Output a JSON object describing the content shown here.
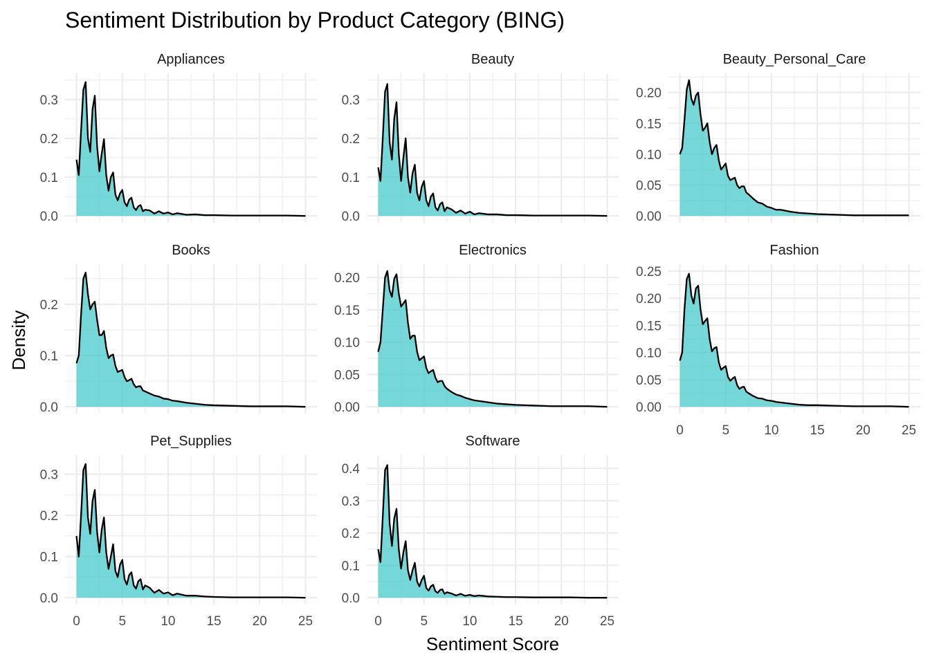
{
  "chart_data": {
    "type": "area",
    "title": "Sentiment Distribution by Product Category (BING)",
    "xlabel": "Sentiment Score",
    "ylabel": "Density",
    "xlim": [
      0,
      25
    ],
    "x_ticks": [
      0,
      5,
      10,
      15,
      20,
      25
    ],
    "fill_color": "#48C9CB",
    "line_color": "#000000",
    "grid": true,
    "facets": [
      {
        "name": "Appliances",
        "ylim": [
          0,
          0.35
        ],
        "y_ticks": [
          "0.0",
          "0.1",
          "0.2",
          "0.3"
        ],
        "y_tick_values": [
          0,
          0.1,
          0.2,
          0.3
        ],
        "x": [
          0,
          0.25,
          0.5,
          0.75,
          1,
          1.25,
          1.5,
          1.75,
          2,
          2.25,
          2.5,
          2.75,
          3,
          3.25,
          3.5,
          3.75,
          4,
          4.25,
          4.5,
          4.75,
          5,
          5.25,
          5.5,
          5.75,
          6,
          6.25,
          6.5,
          6.75,
          7,
          7.25,
          7.5,
          8,
          8.5,
          9,
          9.5,
          10,
          10.5,
          11,
          12,
          13,
          14,
          15,
          17,
          19,
          21,
          23,
          25
        ],
        "y": [
          0.145,
          0.105,
          0.22,
          0.325,
          0.345,
          0.2,
          0.165,
          0.275,
          0.31,
          0.18,
          0.115,
          0.16,
          0.198,
          0.105,
          0.065,
          0.1,
          0.112,
          0.055,
          0.04,
          0.058,
          0.067,
          0.035,
          0.025,
          0.042,
          0.047,
          0.022,
          0.015,
          0.025,
          0.028,
          0.012,
          0.016,
          0.014,
          0.006,
          0.012,
          0.006,
          0.009,
          0.004,
          0.007,
          0.003,
          0.004,
          0.002,
          0.002,
          0.001,
          0.001,
          0.001,
          0.001,
          0.0
        ]
      },
      {
        "name": "Beauty",
        "ylim": [
          0,
          0.35
        ],
        "y_ticks": [
          "0.0",
          "0.1",
          "0.2",
          "0.3"
        ],
        "y_tick_values": [
          0,
          0.1,
          0.2,
          0.3
        ],
        "x": [
          0,
          0.25,
          0.5,
          0.75,
          1,
          1.25,
          1.5,
          1.75,
          2,
          2.25,
          2.5,
          2.75,
          3,
          3.25,
          3.5,
          3.75,
          4,
          4.25,
          4.5,
          4.75,
          5,
          5.25,
          5.5,
          5.75,
          6,
          6.25,
          6.5,
          6.75,
          7,
          7.25,
          7.5,
          8,
          8.5,
          9,
          9.5,
          10,
          10.5,
          11,
          12,
          13,
          14,
          15,
          17,
          19,
          21,
          23,
          25
        ],
        "y": [
          0.125,
          0.09,
          0.2,
          0.32,
          0.34,
          0.19,
          0.145,
          0.25,
          0.293,
          0.16,
          0.09,
          0.15,
          0.2,
          0.1,
          0.06,
          0.11,
          0.132,
          0.06,
          0.04,
          0.075,
          0.09,
          0.04,
          0.025,
          0.05,
          0.058,
          0.022,
          0.014,
          0.03,
          0.035,
          0.012,
          0.022,
          0.017,
          0.008,
          0.014,
          0.006,
          0.011,
          0.004,
          0.007,
          0.004,
          0.004,
          0.002,
          0.002,
          0.001,
          0.001,
          0.001,
          0.001,
          0.0
        ]
      },
      {
        "name": "Beauty_Personal_Care",
        "ylim": [
          0,
          0.22
        ],
        "y_ticks": [
          "0.00",
          "0.05",
          "0.10",
          "0.15",
          "0.20"
        ],
        "y_tick_values": [
          0,
          0.05,
          0.1,
          0.15,
          0.2
        ],
        "x": [
          0,
          0.25,
          0.5,
          0.75,
          1,
          1.25,
          1.5,
          1.75,
          2,
          2.25,
          2.5,
          2.75,
          3,
          3.25,
          3.5,
          3.75,
          4,
          4.25,
          4.5,
          4.75,
          5,
          5.25,
          5.5,
          5.75,
          6,
          6.25,
          6.5,
          6.75,
          7,
          7.25,
          7.5,
          8,
          8.5,
          9,
          9.5,
          10,
          10.5,
          11,
          12,
          13,
          14,
          15,
          17,
          19,
          21,
          23,
          25
        ],
        "y": [
          0.1,
          0.11,
          0.155,
          0.205,
          0.22,
          0.19,
          0.18,
          0.195,
          0.2,
          0.165,
          0.138,
          0.143,
          0.15,
          0.12,
          0.1,
          0.11,
          0.115,
          0.09,
          0.075,
          0.08,
          0.085,
          0.065,
          0.058,
          0.06,
          0.062,
          0.05,
          0.045,
          0.048,
          0.048,
          0.038,
          0.035,
          0.028,
          0.022,
          0.02,
          0.015,
          0.013,
          0.01,
          0.01,
          0.007,
          0.005,
          0.004,
          0.003,
          0.002,
          0.001,
          0.001,
          0.001,
          0.001
        ]
      },
      {
        "name": "Books",
        "ylim": [
          0,
          0.265
        ],
        "y_ticks": [
          "0.0",
          "0.1",
          "0.2"
        ],
        "y_tick_values": [
          0,
          0.1,
          0.2
        ],
        "x": [
          0,
          0.25,
          0.5,
          0.75,
          1,
          1.25,
          1.5,
          1.75,
          2,
          2.25,
          2.5,
          2.75,
          3,
          3.25,
          3.5,
          3.75,
          4,
          4.25,
          4.5,
          4.75,
          5,
          5.25,
          5.5,
          5.75,
          6,
          6.25,
          6.5,
          6.75,
          7,
          7.25,
          7.5,
          8,
          8.5,
          9,
          9.5,
          10,
          10.5,
          11,
          12,
          13,
          14,
          15,
          17,
          19,
          21,
          23,
          25
        ],
        "y": [
          0.085,
          0.1,
          0.18,
          0.25,
          0.262,
          0.22,
          0.19,
          0.2,
          0.205,
          0.17,
          0.14,
          0.14,
          0.148,
          0.115,
          0.095,
          0.1,
          0.102,
          0.08,
          0.068,
          0.07,
          0.072,
          0.058,
          0.05,
          0.052,
          0.055,
          0.044,
          0.038,
          0.04,
          0.04,
          0.032,
          0.03,
          0.026,
          0.022,
          0.02,
          0.016,
          0.015,
          0.012,
          0.011,
          0.008,
          0.006,
          0.004,
          0.003,
          0.002,
          0.001,
          0.001,
          0.001,
          0.0
        ]
      },
      {
        "name": "Electronics",
        "ylim": [
          0,
          0.21
        ],
        "y_ticks": [
          "0.00",
          "0.05",
          "0.10",
          "0.15",
          "0.20"
        ],
        "y_tick_values": [
          0,
          0.05,
          0.1,
          0.15,
          0.2
        ],
        "x": [
          0,
          0.25,
          0.5,
          0.75,
          1,
          1.25,
          1.5,
          1.75,
          2,
          2.25,
          2.5,
          2.75,
          3,
          3.25,
          3.5,
          3.75,
          4,
          4.25,
          4.5,
          4.75,
          5,
          5.25,
          5.5,
          5.75,
          6,
          6.25,
          6.5,
          6.75,
          7,
          7.25,
          7.5,
          8,
          8.5,
          9,
          9.5,
          10,
          10.5,
          11,
          12,
          13,
          14,
          15,
          17,
          19,
          21,
          23,
          25
        ],
        "y": [
          0.085,
          0.1,
          0.15,
          0.2,
          0.21,
          0.18,
          0.17,
          0.198,
          0.205,
          0.175,
          0.155,
          0.16,
          0.165,
          0.13,
          0.105,
          0.11,
          0.11,
          0.085,
          0.072,
          0.075,
          0.078,
          0.06,
          0.052,
          0.055,
          0.057,
          0.045,
          0.038,
          0.04,
          0.04,
          0.032,
          0.028,
          0.023,
          0.019,
          0.017,
          0.014,
          0.012,
          0.01,
          0.009,
          0.007,
          0.005,
          0.004,
          0.003,
          0.002,
          0.001,
          0.001,
          0.001,
          0.0
        ]
      },
      {
        "name": "Fashion",
        "ylim": [
          0,
          0.25
        ],
        "y_ticks": [
          "0.00",
          "0.05",
          "0.10",
          "0.15",
          "0.20",
          "0.25"
        ],
        "y_tick_values": [
          0,
          0.05,
          0.1,
          0.15,
          0.2,
          0.25
        ],
        "x": [
          0,
          0.25,
          0.5,
          0.75,
          1,
          1.25,
          1.5,
          1.75,
          2,
          2.25,
          2.5,
          2.75,
          3,
          3.25,
          3.5,
          3.75,
          4,
          4.25,
          4.5,
          4.75,
          5,
          5.25,
          5.5,
          5.75,
          6,
          6.25,
          6.5,
          6.75,
          7,
          7.25,
          7.5,
          8,
          8.5,
          9,
          9.5,
          10,
          10.5,
          11,
          12,
          13,
          14,
          15,
          17,
          19,
          21,
          23,
          25
        ],
        "y": [
          0.085,
          0.1,
          0.18,
          0.235,
          0.245,
          0.205,
          0.19,
          0.218,
          0.223,
          0.18,
          0.152,
          0.158,
          0.163,
          0.125,
          0.102,
          0.108,
          0.11,
          0.082,
          0.068,
          0.072,
          0.075,
          0.055,
          0.048,
          0.052,
          0.055,
          0.04,
          0.033,
          0.036,
          0.037,
          0.028,
          0.025,
          0.02,
          0.016,
          0.015,
          0.012,
          0.011,
          0.009,
          0.008,
          0.006,
          0.004,
          0.003,
          0.003,
          0.002,
          0.001,
          0.001,
          0.001,
          0.0
        ]
      },
      {
        "name": "Pet_Supplies",
        "ylim": [
          0,
          0.33
        ],
        "y_ticks": [
          "0.0",
          "0.1",
          "0.2",
          "0.3"
        ],
        "y_tick_values": [
          0,
          0.1,
          0.2,
          0.3
        ],
        "x": [
          0,
          0.25,
          0.5,
          0.75,
          1,
          1.25,
          1.5,
          1.75,
          2,
          2.25,
          2.5,
          2.75,
          3,
          3.25,
          3.5,
          3.75,
          4,
          4.25,
          4.5,
          4.75,
          5,
          5.25,
          5.5,
          5.75,
          6,
          6.25,
          6.5,
          6.75,
          7,
          7.25,
          7.5,
          8,
          8.5,
          9,
          9.5,
          10,
          10.5,
          11,
          12,
          13,
          14,
          15,
          17,
          19,
          21,
          23,
          25
        ],
        "y": [
          0.15,
          0.1,
          0.2,
          0.31,
          0.325,
          0.195,
          0.155,
          0.235,
          0.262,
          0.16,
          0.11,
          0.165,
          0.195,
          0.11,
          0.07,
          0.1,
          0.13,
          0.065,
          0.05,
          0.08,
          0.092,
          0.045,
          0.032,
          0.055,
          0.062,
          0.03,
          0.022,
          0.04,
          0.045,
          0.02,
          0.03,
          0.024,
          0.012,
          0.019,
          0.01,
          0.013,
          0.006,
          0.01,
          0.005,
          0.005,
          0.003,
          0.002,
          0.001,
          0.001,
          0.001,
          0.001,
          0.0
        ]
      },
      {
        "name": "Software",
        "ylim": [
          0,
          0.42
        ],
        "y_ticks": [
          "0.0",
          "0.1",
          "0.2",
          "0.3",
          "0.4"
        ],
        "y_tick_values": [
          0,
          0.1,
          0.2,
          0.3,
          0.4
        ],
        "x": [
          0,
          0.25,
          0.5,
          0.75,
          1,
          1.25,
          1.5,
          1.75,
          2,
          2.25,
          2.5,
          2.75,
          3,
          3.25,
          3.5,
          3.75,
          4,
          4.25,
          4.5,
          4.75,
          5,
          5.25,
          5.5,
          5.75,
          6,
          6.25,
          6.5,
          6.75,
          7,
          7.25,
          7.5,
          8,
          8.5,
          9,
          9.5,
          10,
          10.5,
          11,
          12,
          13,
          14,
          15,
          17,
          19,
          21,
          23,
          25
        ],
        "y": [
          0.15,
          0.11,
          0.25,
          0.395,
          0.41,
          0.23,
          0.16,
          0.245,
          0.275,
          0.15,
          0.09,
          0.14,
          0.175,
          0.085,
          0.055,
          0.085,
          0.108,
          0.05,
          0.035,
          0.055,
          0.068,
          0.03,
          0.022,
          0.035,
          0.04,
          0.02,
          0.015,
          0.024,
          0.026,
          0.012,
          0.017,
          0.013,
          0.007,
          0.012,
          0.006,
          0.009,
          0.005,
          0.007,
          0.004,
          0.003,
          0.002,
          0.002,
          0.001,
          0.001,
          0.001,
          0.0,
          0.0
        ]
      }
    ]
  }
}
